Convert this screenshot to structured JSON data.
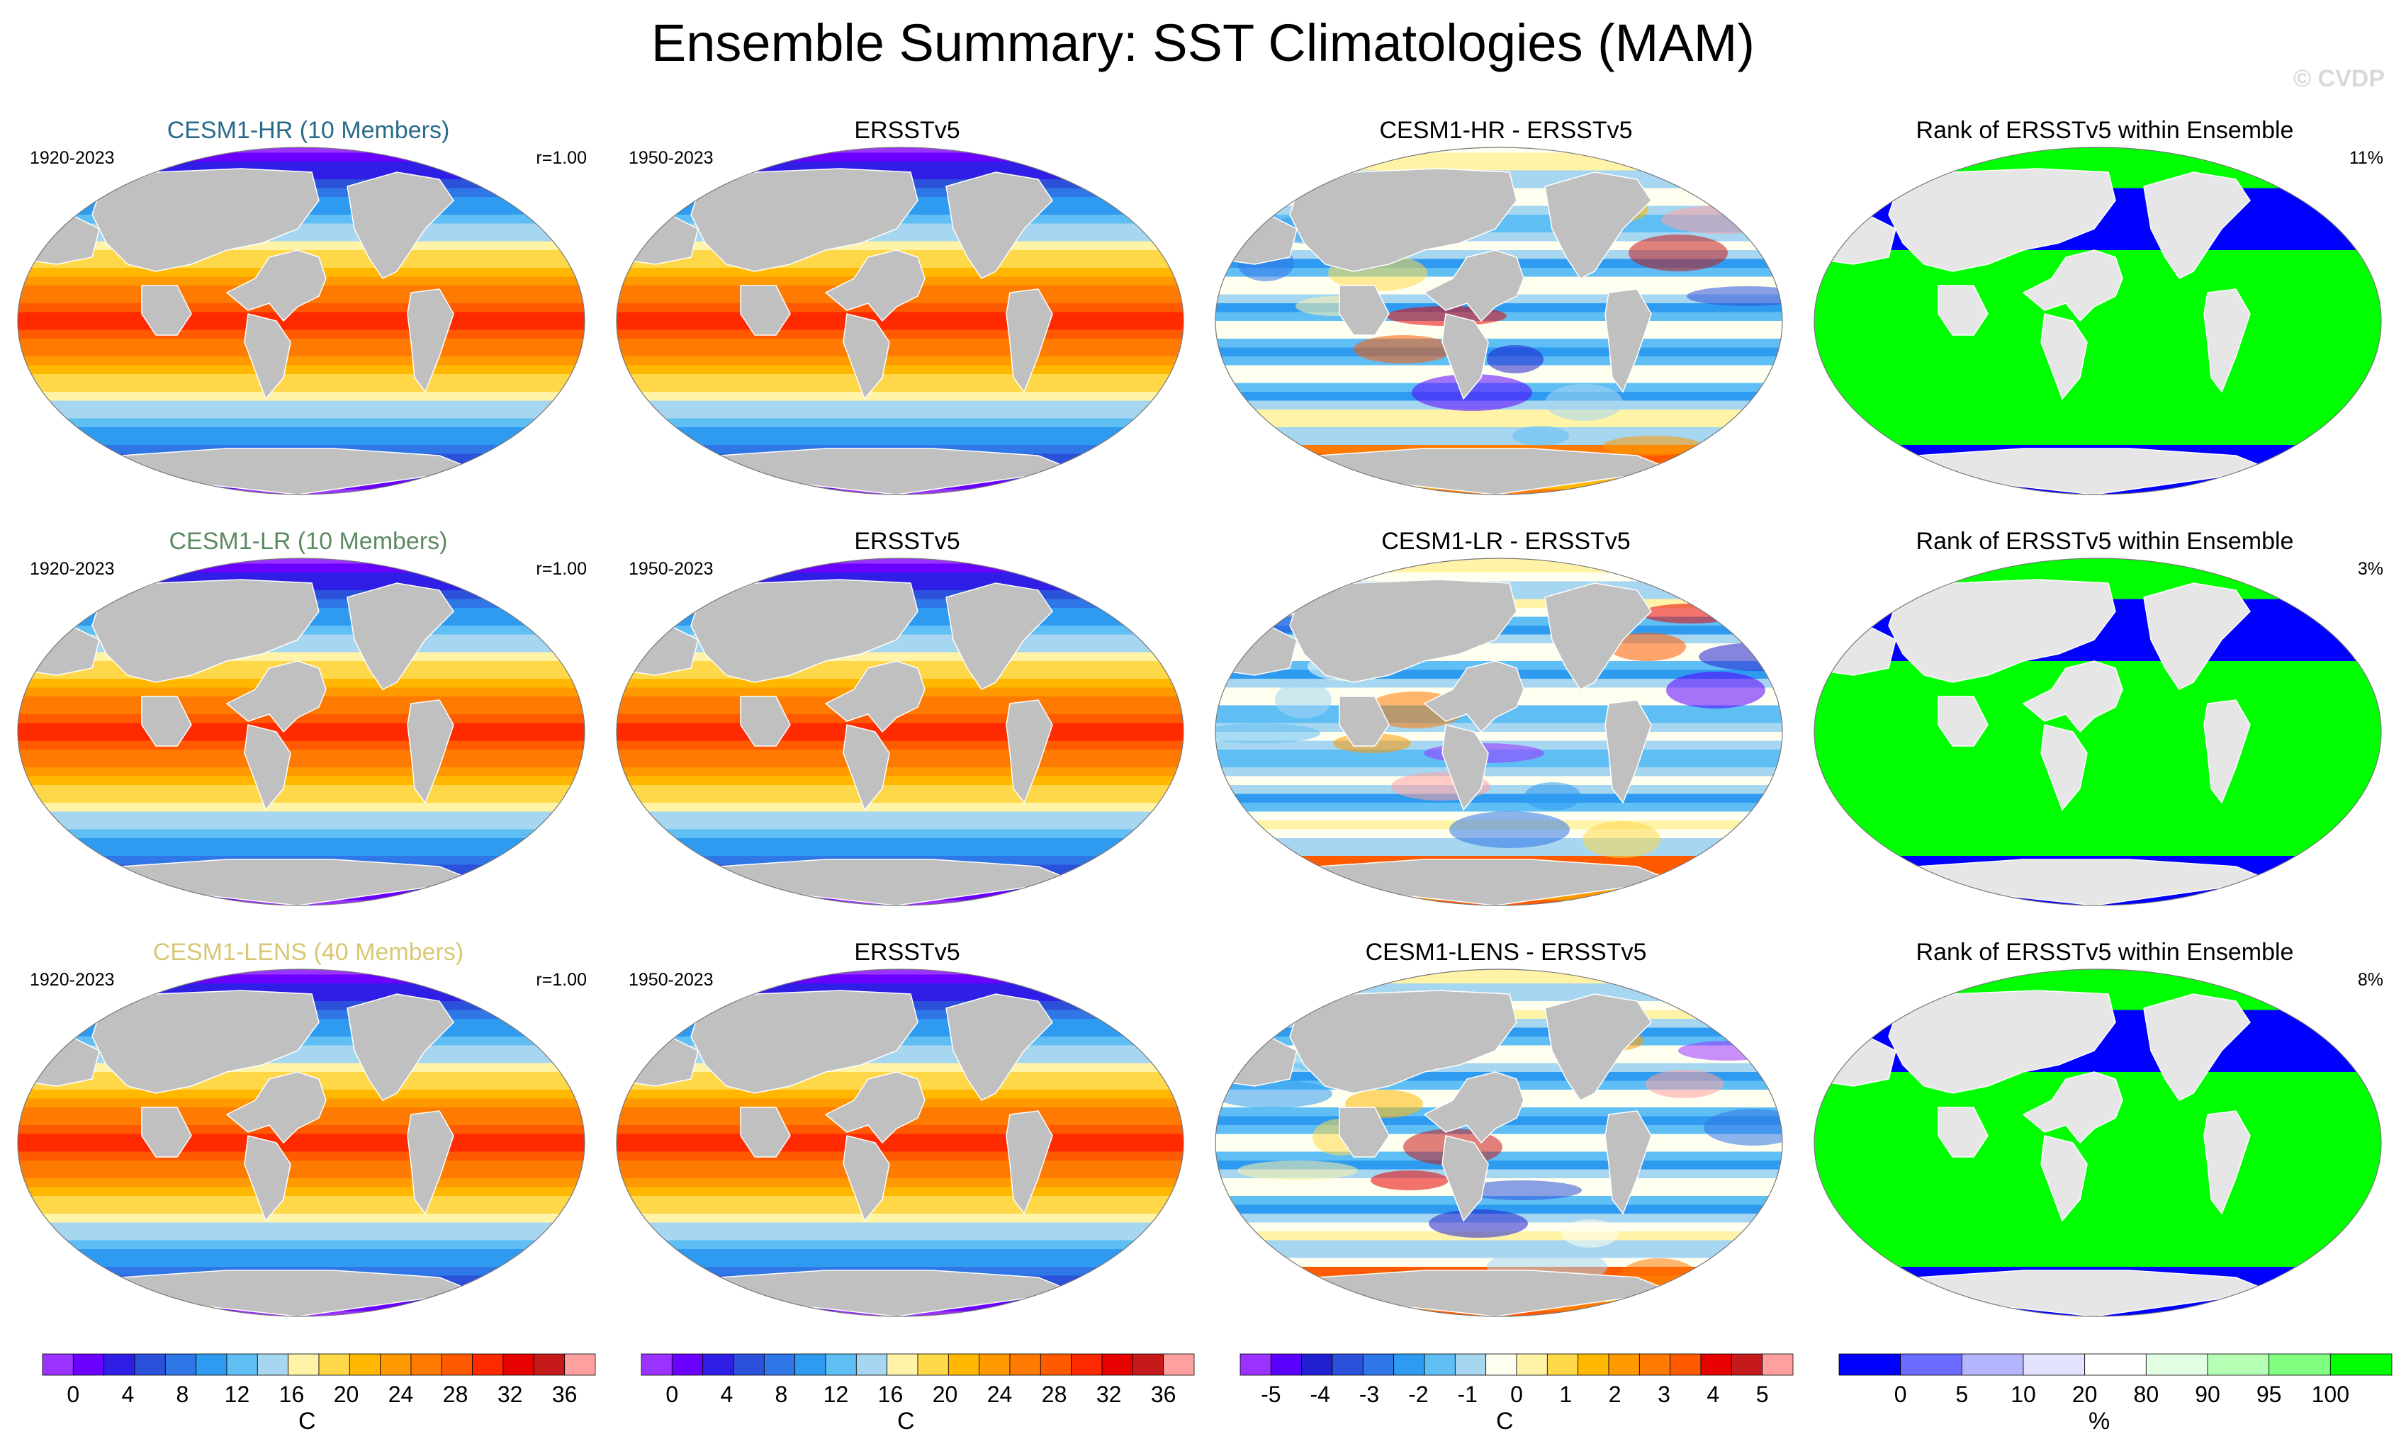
{
  "title": "Ensemble Summary: SST Climatologies (MAM)",
  "watermark": "© CVDP",
  "rows": [
    {
      "model": {
        "title": "CESM1-HR (10 Members)",
        "title_color": "#2a6b8a",
        "years": "1920-2023",
        "r": "r=1.00"
      },
      "obs": {
        "title": "ERSSTv5",
        "years": "1950-2023"
      },
      "diff": {
        "title": "CESM1-HR - ERSSTv5"
      },
      "rank": {
        "title": "Rank of ERSSTv5 within Ensemble",
        "pct": "11%"
      }
    },
    {
      "model": {
        "title": "CESM1-LR (10 Members)",
        "title_color": "#5e8a62",
        "years": "1920-2023",
        "r": "r=1.00"
      },
      "obs": {
        "title": "ERSSTv5",
        "years": "1950-2023"
      },
      "diff": {
        "title": "CESM1-LR - ERSSTv5"
      },
      "rank": {
        "title": "Rank of ERSSTv5 within Ensemble",
        "pct": "3%"
      }
    },
    {
      "model": {
        "title": "CESM1-LENS (40 Members)",
        "title_color": "#d8c873",
        "years": "1920-2023",
        "r": "r=1.00"
      },
      "obs": {
        "title": "ERSSTv5",
        "years": "1950-2023"
      },
      "diff": {
        "title": "CESM1-LENS - ERSSTv5"
      },
      "rank": {
        "title": "Rank of ERSSTv5 within Ensemble",
        "pct": "8%"
      }
    }
  ],
  "colorbars": {
    "sst": {
      "unit": "C",
      "labels": [
        "0",
        "4",
        "8",
        "12",
        "16",
        "20",
        "24",
        "28",
        "32",
        "36"
      ],
      "colors": [
        "#9a33ff",
        "#6a00ff",
        "#2f1fe6",
        "#2b50d9",
        "#2f76e6",
        "#2f9bf0",
        "#5fbff5",
        "#a6d6f0",
        "#fff3a8",
        "#ffd84a",
        "#ffb700",
        "#ff9900",
        "#ff7a00",
        "#ff5a00",
        "#ff2a00",
        "#e60000",
        "#c41a1a",
        "#ffa0a0"
      ]
    },
    "diff": {
      "unit": "C",
      "labels": [
        "-5",
        "-4",
        "-3",
        "-2",
        "-1",
        "0",
        "1",
        "2",
        "3",
        "4",
        "5"
      ],
      "colors": [
        "#9a33ff",
        "#5a00ff",
        "#2020d0",
        "#2b50d9",
        "#2f76e6",
        "#2f9bf0",
        "#5fbff5",
        "#a6d6f0",
        "#fffff0",
        "#fff3a8",
        "#ffd84a",
        "#ffb700",
        "#ff9900",
        "#ff7a00",
        "#ff5a00",
        "#e60000",
        "#c41a1a",
        "#ffa0a0"
      ]
    },
    "rank": {
      "unit": "%",
      "labels": [
        "0",
        "5",
        "10",
        "20",
        "80",
        "90",
        "95",
        "100"
      ],
      "colors": [
        "#0000ff",
        "#6b6bff",
        "#b4b4ff",
        "#e3e3ff",
        "#ffffff",
        "#e3ffe3",
        "#b4ffb4",
        "#80ff80",
        "#00ff00"
      ]
    }
  },
  "map_colors": {
    "land": "#c0c0c0",
    "rank_land": "#e6e6e6",
    "rank_low": "#0000ff",
    "rank_high": "#00ff00"
  }
}
